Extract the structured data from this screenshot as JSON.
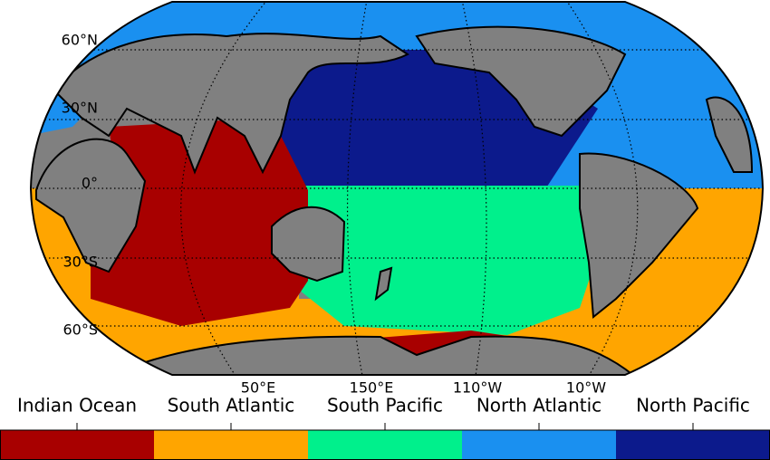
{
  "map": {
    "lat_labels": [
      "60°N",
      "30°N",
      "0°",
      "30°S",
      "60°S"
    ],
    "lon_labels": [
      "50°E",
      "150°E",
      "110°W",
      "10°W"
    ],
    "legend": [
      {
        "name": "Indian Ocean",
        "color": "#a80000"
      },
      {
        "name": "South Atlantic",
        "color": "#ffa500"
      },
      {
        "name": "South Pacific",
        "color": "#00f08c"
      },
      {
        "name": "North Atlantic",
        "color": "#1a90f0"
      },
      {
        "name": "North Pacific",
        "color": "#0c1a8c"
      }
    ]
  }
}
